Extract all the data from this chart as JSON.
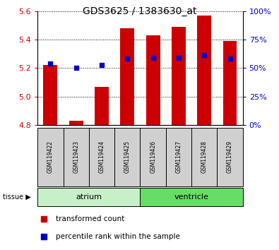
{
  "title": "GDS3625 / 1383630_at",
  "samples": [
    "GSM119422",
    "GSM119423",
    "GSM119424",
    "GSM119425",
    "GSM119426",
    "GSM119427",
    "GSM119428",
    "GSM119429"
  ],
  "red_values": [
    5.22,
    4.83,
    5.07,
    5.48,
    5.43,
    5.49,
    5.57,
    5.39
  ],
  "blue_values": [
    5.23,
    5.2,
    5.22,
    5.265,
    5.27,
    5.27,
    5.29,
    5.265
  ],
  "ymin": 4.8,
  "ymax": 5.6,
  "yticks_left": [
    4.8,
    5.0,
    5.2,
    5.4,
    5.6
  ],
  "yticks_right": [
    0,
    25,
    50,
    75,
    100
  ],
  "tissue_groups": {
    "atrium": [
      0,
      1,
      2,
      3
    ],
    "ventricle": [
      4,
      5,
      6,
      7
    ]
  },
  "atrium_color": "#c8f0c8",
  "ventricle_color": "#66dd66",
  "bar_color": "#cc0000",
  "blue_color": "#0000cc",
  "bar_width": 0.55,
  "left_tick_color": "#cc0000",
  "right_tick_color": "#0000cc",
  "sample_box_color": "#d0d0d0"
}
